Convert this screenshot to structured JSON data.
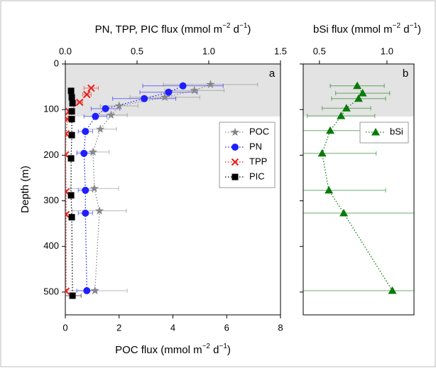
{
  "chart_data": [
    {
      "type": "scatter",
      "panel_label": "a",
      "top_axis_label": [
        "PN, TPP, PIC flux (mmol m",
        "−2",
        " d",
        "−1",
        ")"
      ],
      "bottom_axis_label": [
        "POC flux (mmol m",
        "−2",
        " d",
        "−1",
        ")"
      ],
      "ylabel": "Depth (m)",
      "ylim": [
        0,
        550
      ],
      "yticks": [
        0,
        100,
        200,
        300,
        400,
        500
      ],
      "xlim": [
        0,
        8
      ],
      "xticks": [
        0,
        2,
        4,
        6,
        8
      ],
      "x2lim": [
        0,
        1.5
      ],
      "x2ticks": [
        {
          "value": 0,
          "label": "0.0"
        },
        0.5,
        {
          "value": 1,
          "label": "1.0"
        },
        1.5
      ],
      "shade_depth": [
        0,
        115
      ],
      "legend": "center right",
      "series": [
        {
          "name": "POC",
          "color": "#888888",
          "marker": "star",
          "axis": "x",
          "depth": [
            45,
            58,
            73,
            92,
            112,
            143,
            193,
            273,
            322,
            497
          ],
          "values": [
            5.4,
            4.8,
            3.7,
            2.0,
            1.7,
            1.3,
            1.03,
            1.08,
            1.27,
            1.1
          ],
          "errors": [
            1.75,
            1.1,
            1.3,
            0.7,
            0.6,
            0.6,
            0.6,
            0.9,
            1.0,
            1.2
          ]
        },
        {
          "name": "PN",
          "color": "#1f1fff",
          "marker": "circle",
          "axis": "x2",
          "depth": [
            48,
            62,
            76,
            98,
            115,
            148,
            196,
            277,
            327,
            497
          ],
          "values": [
            0.82,
            0.72,
            0.55,
            0.28,
            0.21,
            0.14,
            0.13,
            0.14,
            0.14,
            0.15
          ],
          "errors": [
            0.28,
            0.2,
            0.22,
            0.1,
            0.08,
            0.05,
            0.05,
            0.05,
            0.05,
            0.07
          ]
        },
        {
          "name": "TPP",
          "color": "#e8221c",
          "marker": "x",
          "axis": "x2",
          "depth": [
            53,
            67,
            84,
            104,
            121,
            153,
            199,
            280,
            330,
            498
          ],
          "values": [
            0.18,
            0.15,
            0.1,
            0.025,
            0.015,
            0.005,
            0.002,
            0.005,
            0.005,
            0.005
          ],
          "errors": [
            0.05,
            0.03,
            0.02,
            0.01,
            0.005,
            0.003,
            0.002,
            0.003,
            0.003,
            0.003
          ]
        },
        {
          "name": "PIC",
          "color": "#000000",
          "marker": "square",
          "axis": "x2",
          "depth": [
            59,
            73,
            86,
            104,
            121,
            156,
            207,
            288,
            336,
            508
          ],
          "values": [
            0.04,
            0.045,
            0.05,
            0.045,
            0.045,
            0.045,
            0.04,
            0.04,
            0.045,
            0.05
          ],
          "errors": [
            0.01,
            0.01,
            0.01,
            0.01,
            0.01,
            0.01,
            0.01,
            0.01,
            0.01,
            0.06
          ]
        }
      ]
    },
    {
      "type": "scatter",
      "panel_label": "b",
      "top_axis_label": [
        "bSi flux (mmol m",
        "−2",
        " d",
        "−1",
        ")"
      ],
      "xlim": [
        0.38,
        1.2
      ],
      "xticks": [
        0.5,
        {
          "value": 1,
          "label": "1.0"
        }
      ],
      "shade_depth": [
        0,
        115
      ],
      "legend": "upper right",
      "series": [
        {
          "name": "bSi",
          "color": "#0a7a0a",
          "marker": "triangle",
          "axis": "x",
          "depth": [
            48,
            64,
            76,
            97,
            114,
            146,
            196,
            277,
            327,
            497
          ],
          "values": [
            0.78,
            0.82,
            0.79,
            0.7,
            0.66,
            0.58,
            0.52,
            0.57,
            0.68,
            1.04
          ],
          "errors": [
            0.2,
            0.2,
            0.2,
            0.18,
            0.25,
            0.35,
            0.4,
            0.42,
            0.6,
            0.8
          ]
        }
      ]
    }
  ]
}
